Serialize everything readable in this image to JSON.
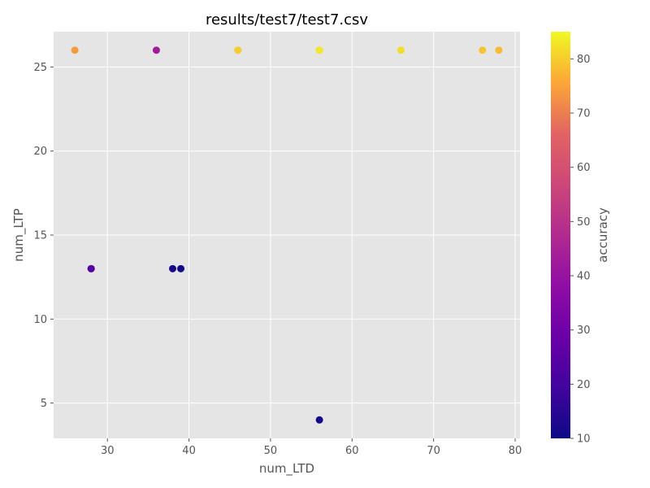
{
  "chart_data": {
    "type": "scatter",
    "title": "results/test7/test7.csv",
    "xlabel": "num_LTD",
    "ylabel": "num_LTP",
    "colorbar_label": "accuracy",
    "xlim": [
      23.4,
      80.6
    ],
    "ylim": [
      2.9,
      27.1
    ],
    "xticks": [
      30,
      40,
      50,
      60,
      70,
      80
    ],
    "yticks": [
      5,
      10,
      15,
      20,
      25
    ],
    "colorbar_range": [
      10,
      85
    ],
    "colorbar_ticks": [
      10,
      20,
      30,
      40,
      50,
      60,
      70,
      80
    ],
    "colormap": "plasma",
    "grid": true,
    "points": [
      {
        "x": 26,
        "y": 26,
        "c": 74
      },
      {
        "x": 36,
        "y": 26,
        "c": 43
      },
      {
        "x": 46,
        "y": 26,
        "c": 76
      },
      {
        "x": 46,
        "y": 26,
        "c": 80
      },
      {
        "x": 56,
        "y": 26,
        "c": 80
      },
      {
        "x": 56,
        "y": 26,
        "c": 83
      },
      {
        "x": 66,
        "y": 26,
        "c": 82
      },
      {
        "x": 76,
        "y": 26,
        "c": 79
      },
      {
        "x": 78,
        "y": 26,
        "c": 78
      },
      {
        "x": 28,
        "y": 13,
        "c": 20
      },
      {
        "x": 28,
        "y": 13,
        "c": 24
      },
      {
        "x": 38,
        "y": 13,
        "c": 12
      },
      {
        "x": 39,
        "y": 13,
        "c": 11
      },
      {
        "x": 56,
        "y": 4,
        "c": 11
      }
    ]
  },
  "colors": {
    "plot_background": "#e5e5e5",
    "grid": "#ffffff",
    "text": "#555555"
  }
}
